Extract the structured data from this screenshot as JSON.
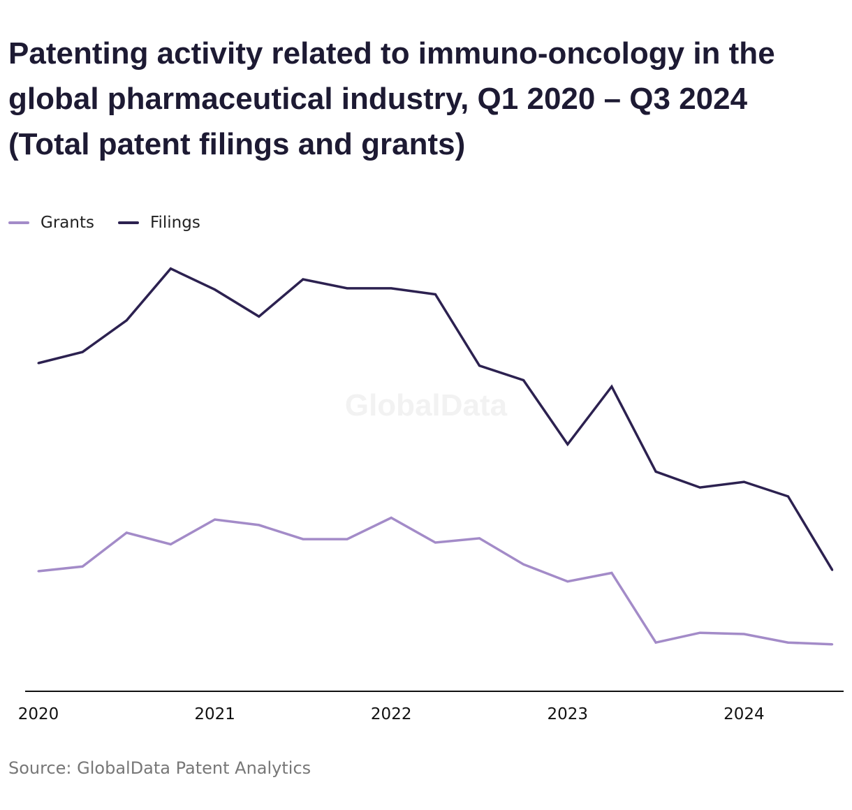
{
  "title": "Patenting activity related to immuno-oncology in the global pharmaceutical industry, Q1 2020 – Q3 2024 (Total patent filings and grants)",
  "source": "Source: GlobalData Patent Analytics",
  "watermark": "GlobalData",
  "colors": {
    "grants": "#a38bc8",
    "filings": "#2c2150",
    "axis": "#111111"
  },
  "chart_data": {
    "type": "line",
    "title": "Patenting activity related to immuno-oncology in the global pharmaceutical industry, Q1 2020 – Q3 2024 (Total patent filings and grants)",
    "xlabel": "",
    "ylabel": "",
    "x": [
      "Q1 2020",
      "Q2 2020",
      "Q3 2020",
      "Q4 2020",
      "Q1 2021",
      "Q2 2021",
      "Q3 2021",
      "Q4 2021",
      "Q1 2022",
      "Q2 2022",
      "Q3 2022",
      "Q4 2022",
      "Q1 2023",
      "Q2 2023",
      "Q3 2023",
      "Q4 2023",
      "Q1 2024",
      "Q2 2024",
      "Q3 2024"
    ],
    "xticks": [
      "2020",
      "2021",
      "2022",
      "2023",
      "2024"
    ],
    "y_axis_shown": false,
    "ylim": [
      0,
      1000
    ],
    "grid": false,
    "legend_position": "top-left",
    "series": [
      {
        "name": "Grants",
        "color": "#a38bc8",
        "values": [
          281,
          292,
          371,
          344,
          402,
          389,
          356,
          356,
          406,
          348,
          358,
          297,
          257,
          277,
          114,
          137,
          134,
          114,
          110
        ]
      },
      {
        "name": "Filings",
        "color": "#2c2150",
        "values": [
          768,
          794,
          868,
          989,
          940,
          877,
          964,
          943,
          943,
          929,
          762,
          728,
          578,
          713,
          514,
          477,
          490,
          456,
          284
        ]
      }
    ]
  }
}
